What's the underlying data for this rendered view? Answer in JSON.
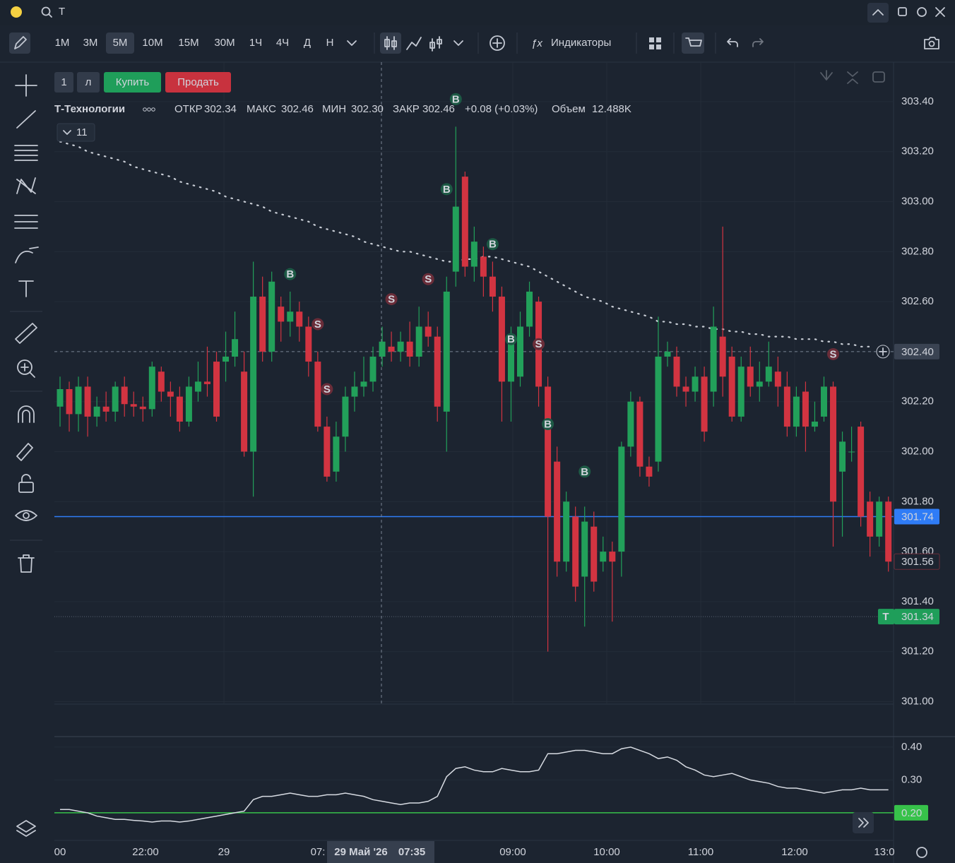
{
  "search": "T",
  "timeframes": [
    "1М",
    "3М",
    "5М",
    "10М",
    "15М",
    "30М",
    "1Ч",
    "4Ч",
    "Д",
    "Н"
  ],
  "active_timeframe": "5М",
  "indicators_button": "Индикаторы",
  "order": {
    "qty": "1",
    "lots": "л",
    "buy": "Купить",
    "sell": "Продать"
  },
  "legend": {
    "symbol": "Т-Технологии",
    "open_label": "ОТКР",
    "open": "302.34",
    "high_label": "МАКС",
    "high": "302.46",
    "low_label": "МИН",
    "low": "302.30",
    "close_label": "ЗАКР",
    "close": "302.46",
    "change": "+0.08 (+0.03%)",
    "volume_label": "Объем",
    "volume": "12.488K"
  },
  "indicator_count": 11,
  "chart_data": {
    "type": "candlestick",
    "up_color": "#22a05a",
    "down_color": "#d23441",
    "ma_color": "#c9ced6",
    "ylim": [
      300.99,
      303.558
    ],
    "yticks": [
      {
        "value": 301.0,
        "label": "301.00"
      },
      {
        "value": 301.2,
        "label": "301.20"
      },
      {
        "value": 301.4,
        "label": "301.40"
      },
      {
        "value": 301.6,
        "label": "301.60"
      },
      {
        "value": 301.8,
        "label": "301.80"
      },
      {
        "value": 302.0,
        "label": "302.00"
      },
      {
        "value": 302.2,
        "label": "302.20"
      },
      {
        "value": 302.4,
        "label": "302.40"
      },
      {
        "value": 302.6,
        "label": "302.60"
      },
      {
        "value": 302.8,
        "label": "302.80"
      },
      {
        "value": 303.0,
        "label": "303.00"
      },
      {
        "value": 303.2,
        "label": "303.20"
      },
      {
        "value": 303.4,
        "label": "303.40"
      }
    ],
    "time_labels": [
      "00",
      "22:00",
      "29",
      "07:",
      "09:00",
      "10:00",
      "11:00",
      "12:00",
      "13:0"
    ],
    "crosshair_date": "29 Май '26",
    "crosshair_time": "07:35",
    "crosshair_price": {
      "value": 302.4,
      "label": "302.40"
    },
    "last_price": {
      "value": 301.74,
      "label": "301.74"
    },
    "close_marker": {
      "value": 301.56,
      "label": "301.56"
    },
    "t_price": {
      "value": 301.34,
      "label": "301.34"
    },
    "t_label": "Т",
    "candles": [
      [
        302.18,
        302.3,
        302.1,
        302.25
      ],
      [
        302.25,
        302.28,
        302.08,
        302.15
      ],
      [
        302.15,
        302.3,
        302.08,
        302.26
      ],
      [
        302.26,
        302.3,
        302.06,
        302.14
      ],
      [
        302.14,
        302.22,
        302.1,
        302.18
      ],
      [
        302.18,
        302.24,
        302.12,
        302.16
      ],
      [
        302.16,
        302.28,
        302.12,
        302.26
      ],
      [
        302.26,
        302.3,
        302.14,
        302.19
      ],
      [
        302.19,
        302.24,
        302.14,
        302.18
      ],
      [
        302.18,
        302.22,
        302.12,
        302.17
      ],
      [
        302.17,
        302.36,
        302.14,
        302.34
      ],
      [
        302.32,
        302.34,
        302.2,
        302.24
      ],
      [
        302.24,
        302.28,
        302.14,
        302.22
      ],
      [
        302.22,
        302.26,
        302.08,
        302.12
      ],
      [
        302.12,
        302.3,
        302.1,
        302.26
      ],
      [
        302.24,
        302.36,
        302.2,
        302.28
      ],
      [
        302.28,
        302.42,
        302.22,
        302.27
      ],
      [
        302.36,
        302.4,
        302.12,
        302.14
      ],
      [
        302.36,
        302.48,
        302.28,
        302.38
      ],
      [
        302.38,
        302.56,
        302.34,
        302.45
      ],
      [
        302.32,
        302.4,
        301.98,
        302.0
      ],
      [
        302.0,
        302.76,
        301.82,
        302.62
      ],
      [
        302.62,
        302.7,
        302.36,
        302.4
      ],
      [
        302.4,
        302.72,
        302.36,
        302.68
      ],
      [
        302.58,
        302.62,
        302.44,
        302.52
      ],
      [
        302.52,
        302.64,
        302.46,
        302.56
      ],
      [
        302.56,
        302.6,
        302.44,
        302.5
      ],
      [
        302.5,
        302.54,
        302.3,
        302.36
      ],
      [
        302.36,
        302.4,
        302.08,
        302.1
      ],
      [
        302.1,
        302.14,
        301.88,
        301.9
      ],
      [
        301.92,
        302.12,
        301.88,
        302.06
      ],
      [
        302.06,
        302.26,
        302.0,
        302.22
      ],
      [
        302.22,
        302.32,
        302.16,
        302.26
      ],
      [
        302.26,
        302.38,
        302.22,
        302.28
      ],
      [
        302.28,
        302.42,
        302.24,
        302.38
      ],
      [
        302.38,
        302.5,
        302.34,
        302.44
      ],
      [
        302.42,
        302.48,
        302.36,
        302.4
      ],
      [
        302.4,
        302.48,
        302.36,
        302.44
      ],
      [
        302.44,
        302.52,
        302.34,
        302.38
      ],
      [
        302.38,
        302.58,
        302.34,
        302.5
      ],
      [
        302.5,
        302.56,
        302.42,
        302.46
      ],
      [
        302.46,
        302.5,
        302.12,
        302.18
      ],
      [
        302.16,
        302.7,
        302.0,
        302.64
      ],
      [
        302.72,
        303.3,
        302.66,
        302.98
      ],
      [
        303.1,
        303.12,
        302.7,
        302.74
      ],
      [
        302.74,
        302.9,
        302.68,
        302.84
      ],
      [
        302.78,
        302.82,
        302.62,
        302.7
      ],
      [
        302.7,
        302.76,
        302.56,
        302.62
      ],
      [
        302.62,
        302.66,
        302.12,
        302.28
      ],
      [
        302.28,
        302.5,
        302.12,
        302.46
      ],
      [
        302.3,
        302.56,
        302.26,
        302.5
      ],
      [
        302.5,
        302.68,
        302.46,
        302.64
      ],
      [
        302.6,
        302.62,
        302.18,
        302.26
      ],
      [
        302.26,
        302.3,
        301.2,
        301.74
      ],
      [
        301.96,
        302.02,
        301.5,
        301.56
      ],
      [
        301.56,
        301.84,
        301.52,
        301.8
      ],
      [
        301.74,
        301.78,
        301.4,
        301.46
      ],
      [
        301.5,
        301.78,
        301.3,
        301.72
      ],
      [
        301.7,
        301.76,
        301.44,
        301.48
      ],
      [
        301.56,
        301.66,
        301.52,
        301.6
      ],
      [
        301.6,
        301.64,
        301.32,
        301.56
      ],
      [
        301.6,
        302.04,
        301.5,
        302.02
      ],
      [
        302.02,
        302.24,
        301.98,
        302.2
      ],
      [
        302.2,
        302.22,
        301.9,
        301.94
      ],
      [
        301.94,
        301.98,
        301.86,
        301.9
      ],
      [
        301.96,
        302.54,
        301.92,
        302.38
      ],
      [
        302.38,
        302.44,
        302.34,
        302.4
      ],
      [
        302.38,
        302.42,
        302.22,
        302.26
      ],
      [
        302.26,
        302.3,
        302.18,
        302.24
      ],
      [
        302.24,
        302.34,
        302.2,
        302.3
      ],
      [
        302.3,
        302.34,
        302.04,
        302.08
      ],
      [
        302.24,
        302.58,
        302.18,
        302.5
      ],
      [
        302.46,
        302.9,
        302.22,
        302.3
      ],
      [
        302.38,
        302.42,
        302.12,
        302.14
      ],
      [
        302.14,
        302.38,
        302.12,
        302.34
      ],
      [
        302.34,
        302.42,
        302.22,
        302.26
      ],
      [
        302.26,
        302.36,
        302.2,
        302.28
      ],
      [
        302.28,
        302.44,
        302.26,
        302.34
      ],
      [
        302.32,
        302.38,
        302.18,
        302.26
      ],
      [
        302.26,
        302.32,
        302.06,
        302.1
      ],
      [
        302.1,
        302.26,
        302.06,
        302.22
      ],
      [
        302.24,
        302.28,
        302.0,
        302.1
      ],
      [
        302.1,
        302.2,
        302.08,
        302.12
      ],
      [
        302.14,
        302.3,
        302.12,
        302.26
      ],
      [
        302.26,
        302.28,
        301.62,
        301.8
      ],
      [
        301.92,
        302.08,
        301.66,
        302.04
      ],
      [
        302.0,
        302.1,
        301.96,
        302.0
      ],
      [
        302.1,
        302.12,
        301.7,
        301.74
      ],
      [
        301.8,
        301.84,
        301.58,
        301.66
      ],
      [
        301.66,
        301.82,
        301.62,
        301.8
      ],
      [
        301.8,
        301.82,
        301.52,
        301.56
      ]
    ],
    "ma": [
      303.24,
      303.23,
      303.22,
      303.2,
      303.19,
      303.18,
      303.17,
      303.16,
      303.14,
      303.13,
      303.12,
      303.11,
      303.1,
      303.08,
      303.07,
      303.06,
      303.05,
      303.04,
      303.02,
      303.01,
      303.0,
      302.99,
      302.98,
      302.96,
      302.95,
      302.94,
      302.93,
      302.92,
      302.9,
      302.89,
      302.88,
      302.87,
      302.86,
      302.84,
      302.83,
      302.82,
      302.81,
      302.8,
      302.8,
      302.79,
      302.78,
      302.77,
      302.76,
      302.76,
      302.77,
      302.77,
      302.78,
      302.78,
      302.77,
      302.76,
      302.75,
      302.74,
      302.72,
      302.7,
      302.68,
      302.66,
      302.64,
      302.62,
      302.61,
      302.6,
      302.58,
      302.57,
      302.56,
      302.55,
      302.54,
      302.52,
      302.52,
      302.51,
      302.51,
      302.5,
      302.5,
      302.49,
      302.49,
      302.48,
      302.48,
      302.47,
      302.47,
      302.46,
      302.46,
      302.46,
      302.45,
      302.45,
      302.45,
      302.44,
      302.44,
      302.43,
      302.43,
      302.42,
      302.42,
      null,
      null
    ],
    "signals": [
      {
        "label": "B",
        "index": 25,
        "price": 302.71
      },
      {
        "label": "S",
        "index": 28,
        "price": 302.51
      },
      {
        "label": "S",
        "index": 29,
        "price": 302.25
      },
      {
        "label": "S",
        "index": 36,
        "price": 302.61
      },
      {
        "label": "S",
        "index": 40,
        "price": 302.69
      },
      {
        "label": "B",
        "index": 42,
        "price": 303.05
      },
      {
        "label": "B",
        "index": 43,
        "price": 303.41
      },
      {
        "label": "B",
        "index": 47,
        "price": 302.83
      },
      {
        "label": "B",
        "index": 49,
        "price": 302.45
      },
      {
        "label": "S",
        "index": 52,
        "price": 302.43
      },
      {
        "label": "B",
        "index": 53,
        "price": 302.11
      },
      {
        "label": "B",
        "index": 57,
        "price": 301.92
      },
      {
        "label": "S",
        "index": 84,
        "price": 302.39
      }
    ],
    "indicator": {
      "color": "#d7dbe2",
      "level_color": "#37c24a",
      "ylim": [
        0.116,
        0.432
      ],
      "yticks": [
        {
          "value": 0.3,
          "label": "0.30"
        },
        {
          "value": 0.4,
          "label": "0.40"
        }
      ],
      "level": {
        "value": 0.2,
        "label": "0.20"
      },
      "values": [
        0.21,
        0.21,
        0.205,
        0.2,
        0.19,
        0.185,
        0.18,
        0.18,
        0.177,
        0.175,
        0.172,
        0.175,
        0.175,
        0.172,
        0.175,
        0.18,
        0.185,
        0.19,
        0.195,
        0.2,
        0.205,
        0.24,
        0.25,
        0.25,
        0.255,
        0.26,
        0.255,
        0.25,
        0.25,
        0.255,
        0.255,
        0.26,
        0.255,
        0.25,
        0.24,
        0.235,
        0.23,
        0.225,
        0.23,
        0.23,
        0.235,
        0.25,
        0.31,
        0.335,
        0.34,
        0.33,
        0.325,
        0.325,
        0.335,
        0.33,
        0.325,
        0.325,
        0.33,
        0.38,
        0.38,
        0.385,
        0.39,
        0.39,
        0.385,
        0.38,
        0.38,
        0.395,
        0.4,
        0.39,
        0.38,
        0.365,
        0.37,
        0.36,
        0.34,
        0.33,
        0.315,
        0.31,
        0.315,
        0.32,
        0.31,
        0.3,
        0.295,
        0.29,
        0.28,
        0.275,
        0.275,
        0.27,
        0.265,
        0.26,
        0.265,
        0.27,
        0.27,
        0.275,
        0.27,
        0.27,
        0.27
      ]
    }
  }
}
